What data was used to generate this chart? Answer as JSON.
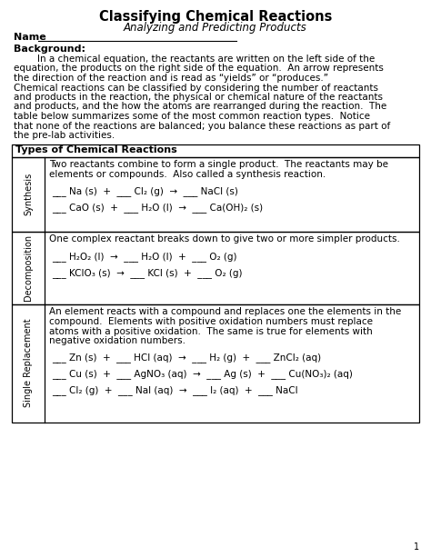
{
  "title": "Classifying Chemical Reactions",
  "subtitle": "Analyzing and Predicting Products",
  "name_label": "Name",
  "background_label": "Background:",
  "bg_para1": "        In a chemical equation, the reactants are written on the left side of the equation, the products on the right side of the equation.  An arrow represents the direction of the reaction and is read as “yields” or “produces.”",
  "bg_para2": "Chemical reactions can be classified by considering the number of reactants and products in the reaction, the physical or chemical nature of the reactants and products, and the how the atoms are rearranged during the reaction.  The table below summarizes some of the most common reaction types.  Notice that none of the reactions are balanced; you balance these reactions as part of the pre-lab activities.",
  "table_header": "Types of Chemical Reactions",
  "rows": [
    {
      "label": "Synthesis",
      "desc_lines": [
        "Two reactants combine to form a single product.  The reactants may be",
        "elements or compounds.  Also called a synthesis reaction."
      ],
      "equations": [
        "___ Na (s)  +  ___ Cl₂ (g)  →  ___ NaCl (s)",
        "___ CaO (s)  +  ___ H₂O (l)  →  ___ Ca(OH)₂ (s)"
      ]
    },
    {
      "label": "Decomposition",
      "desc_lines": [
        "One complex reactant breaks down to give two or more simpler products."
      ],
      "equations": [
        "___ H₂O₂ (l)  →  ___ H₂O (l)  +  ___ O₂ (g)",
        "___ KClO₃ (s)  →  ___ KCl (s)  +  ___ O₂ (g)"
      ]
    },
    {
      "label": "Single Replacement",
      "desc_lines": [
        "An element reacts with a compound and replaces one the elements in the",
        "compound.  Elements with positive oxidation numbers must replace",
        "atoms with a positive oxidation.  The same is true for elements with",
        "negative oxidation numbers."
      ],
      "equations": [
        "___ Zn (s)  +  ___ HCl (aq)  →  ___ H₂ (g)  +  ___ ZnCl₂ (aq)",
        "___ Cu (s)  +  ___ AgNO₃ (aq)  →  ___ Ag (s)  +  ___ Cu(NO₃)₂ (aq)",
        "___ Cl₂ (g)  +  ___ NaI (aq)  →  ___ I₂ (aq)  +  ___ NaCl"
      ]
    }
  ],
  "page_number": "1"
}
